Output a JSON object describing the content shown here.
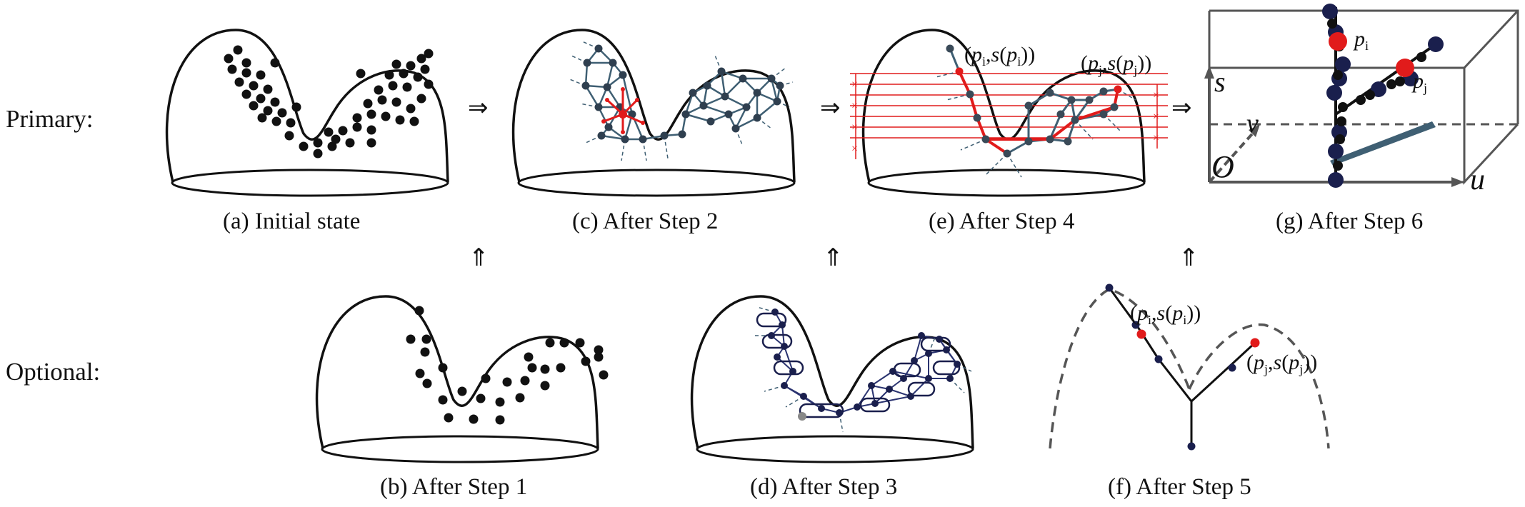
{
  "rows": {
    "primary": "Primary:",
    "optional": "Optional:"
  },
  "captions": {
    "a": "(a) Initial state",
    "b": "(b) After Step 1",
    "c": "(c) After Step 2",
    "d": "(d) After Step 3",
    "e": "(e) After Step 4",
    "f": "(f) After Step 5",
    "g": "(g) After Step 6"
  },
  "arrows": {
    "right": "⇒",
    "up": "⇑"
  },
  "point_labels": {
    "p": "p",
    "s": "s",
    "i": "i",
    "j": "j"
  },
  "axes": {
    "s": "s",
    "v": "v",
    "u": "u",
    "origin": "O"
  },
  "colors": {
    "ink": "#111111",
    "node_dark": "#1a1f4d",
    "edge_slate": "#3f5f73",
    "highlight_red": "#e11b1b",
    "dashed": "#555555"
  }
}
